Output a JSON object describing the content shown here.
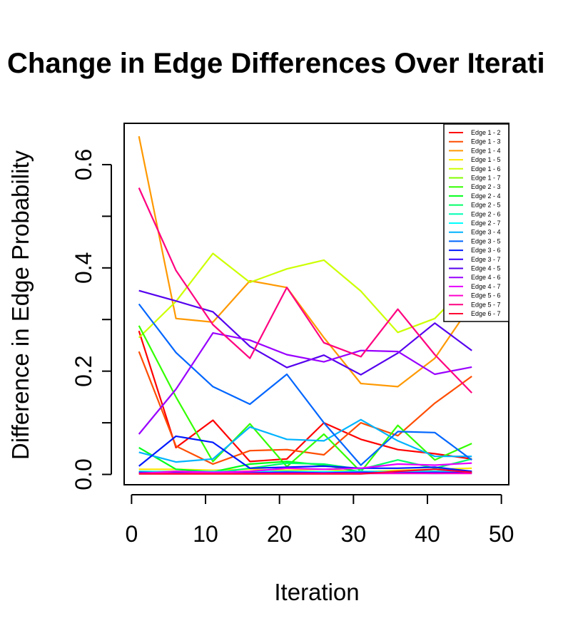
{
  "chart_data": {
    "type": "line",
    "title": "Change in Edge Differences Over Iterati",
    "xlabel": "Iteration",
    "ylabel": "Difference in Edge Probability",
    "xlim": [
      -1,
      51
    ],
    "ylim": [
      -0.02,
      0.68
    ],
    "x_ticks": [
      0,
      10,
      20,
      30,
      40,
      50
    ],
    "y_ticks": [
      0.0,
      0.2,
      0.4,
      0.6
    ],
    "y_minor_ticks": [
      0.1,
      0.3,
      0.5
    ],
    "grid": false,
    "legend_position": "top-right",
    "x": [
      1,
      6,
      11,
      16,
      21,
      26,
      31,
      36,
      41,
      46
    ],
    "series": [
      {
        "name": "Edge 1 - 2",
        "color": "#ff0000",
        "values": [
          0.278,
          0.052,
          0.105,
          0.025,
          0.03,
          0.1,
          0.068,
          0.048,
          0.04,
          0.03
        ]
      },
      {
        "name": "Edge 1 - 3",
        "color": "#ff4d00",
        "values": [
          0.238,
          0.055,
          0.02,
          0.046,
          0.048,
          0.038,
          0.1,
          0.075,
          0.138,
          0.19
        ]
      },
      {
        "name": "Edge 1 - 4",
        "color": "#ff9900",
        "values": [
          0.655,
          0.302,
          0.295,
          0.375,
          0.362,
          0.265,
          0.176,
          0.17,
          0.225,
          0.33
        ]
      },
      {
        "name": "Edge 1 - 5",
        "color": "#ffe600",
        "values": [
          0.01,
          0.01,
          0.008,
          0.01,
          0.008,
          0.01,
          0.005,
          0.008,
          0.01,
          0.012
        ]
      },
      {
        "name": "Edge 1 - 6",
        "color": "#ccff00",
        "values": [
          0.265,
          0.335,
          0.428,
          0.372,
          0.398,
          0.415,
          0.355,
          0.275,
          0.302,
          0.375
        ]
      },
      {
        "name": "Edge 1 - 7",
        "color": "#80ff00",
        "values": [
          0.005,
          0.006,
          0.004,
          0.005,
          0.006,
          0.005,
          0.004,
          0.005,
          0.006,
          0.005
        ]
      },
      {
        "name": "Edge 2 - 3",
        "color": "#33ff00",
        "values": [
          0.288,
          0.15,
          0.025,
          0.098,
          0.015,
          0.078,
          0.005,
          0.095,
          0.028,
          0.06
        ]
      },
      {
        "name": "Edge 2 - 4",
        "color": "#00ff1a",
        "values": [
          0.052,
          0.01,
          0.005,
          0.02,
          0.025,
          0.018,
          0.005,
          0.005,
          0.01,
          0.005
        ]
      },
      {
        "name": "Edge 2 - 5",
        "color": "#00ff66",
        "values": [
          0.003,
          0.004,
          0.003,
          0.012,
          0.022,
          0.02,
          0.01,
          0.028,
          0.012,
          0.03
        ]
      },
      {
        "name": "Edge 2 - 6",
        "color": "#00ffb3",
        "values": [
          0.002,
          0.003,
          0.002,
          0.003,
          0.002,
          0.003,
          0.002,
          0.003,
          0.002,
          0.003
        ]
      },
      {
        "name": "Edge 2 - 7",
        "color": "#00ffff",
        "values": [
          0.006,
          0.005,
          0.006,
          0.005,
          0.006,
          0.005,
          0.006,
          0.005,
          0.006,
          0.005
        ]
      },
      {
        "name": "Edge 3 - 4",
        "color": "#00b3ff",
        "values": [
          0.043,
          0.024,
          0.03,
          0.092,
          0.068,
          0.065,
          0.106,
          0.065,
          0.035,
          0.035
        ]
      },
      {
        "name": "Edge 3 - 5",
        "color": "#0066ff",
        "values": [
          0.33,
          0.236,
          0.17,
          0.136,
          0.194,
          0.1,
          0.018,
          0.083,
          0.081,
          0.028
        ]
      },
      {
        "name": "Edge 3 - 6",
        "color": "#001aff",
        "values": [
          0.016,
          0.074,
          0.062,
          0.012,
          0.014,
          0.016,
          0.012,
          0.012,
          0.014,
          0.006
        ]
      },
      {
        "name": "Edge 3 - 7",
        "color": "#3300ff",
        "values": [
          0.004,
          0.003,
          0.004,
          0.003,
          0.004,
          0.003,
          0.004,
          0.003,
          0.004,
          0.003
        ]
      },
      {
        "name": "Edge 4 - 5",
        "color": "#5500ee",
        "values": [
          0.356,
          0.336,
          0.315,
          0.248,
          0.207,
          0.231,
          0.193,
          0.235,
          0.293,
          0.24
        ]
      },
      {
        "name": "Edge 4 - 6",
        "color": "#9900ff",
        "values": [
          0.078,
          0.165,
          0.274,
          0.26,
          0.232,
          0.218,
          0.24,
          0.238,
          0.194,
          0.208
        ]
      },
      {
        "name": "Edge 4 - 7",
        "color": "#e600ff",
        "values": [
          0.002,
          0.006,
          0.004,
          0.006,
          0.012,
          0.01,
          0.012,
          0.02,
          0.018,
          0.022
        ]
      },
      {
        "name": "Edge 5 - 6",
        "color": "#ff00cc",
        "values": [
          0.002,
          0.002,
          0.002,
          0.002,
          0.002,
          0.002,
          0.002,
          0.002,
          0.002,
          0.002
        ]
      },
      {
        "name": "Edge 5 - 7",
        "color": "#ff0080",
        "values": [
          0.555,
          0.395,
          0.29,
          0.225,
          0.362,
          0.255,
          0.228,
          0.32,
          0.232,
          0.158
        ]
      },
      {
        "name": "Edge 6 - 7",
        "color": "#ff0033",
        "values": [
          0.001,
          0.001,
          0.001,
          0.001,
          0.001,
          0.001,
          0.001,
          0.006,
          0.01,
          0.004
        ]
      }
    ]
  }
}
